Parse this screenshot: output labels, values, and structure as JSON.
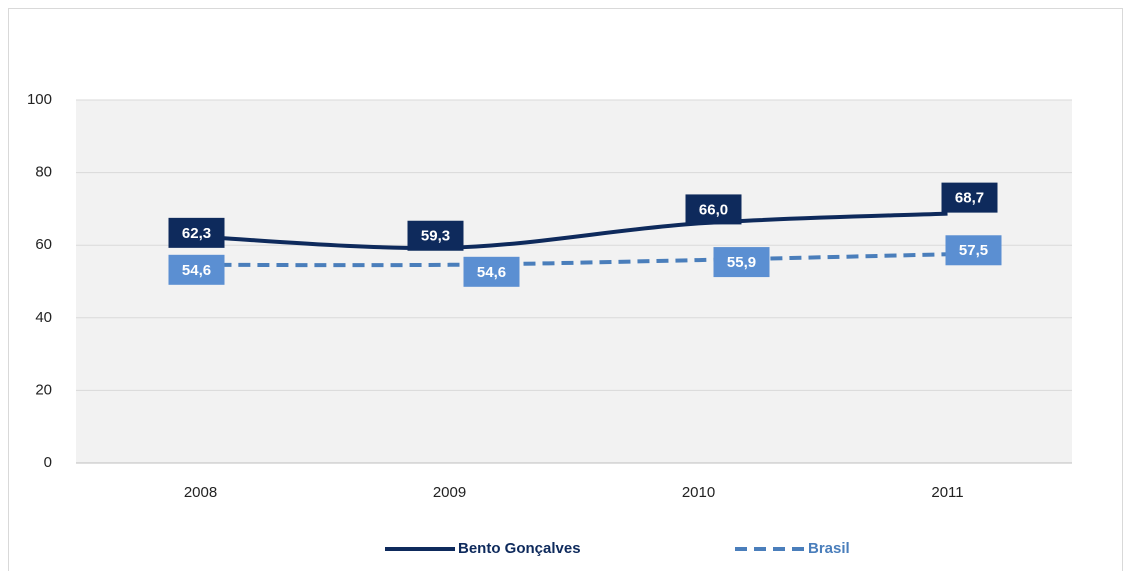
{
  "chart_data": {
    "type": "line",
    "categories": [
      "2008",
      "2009",
      "2010",
      "2011"
    ],
    "series": [
      {
        "name": "Bento Gonçalves",
        "color": "#0e2a5c",
        "dash": false,
        "label_color": "#0e2a5c",
        "values": [
          62.3,
          59.3,
          66.0,
          68.7
        ],
        "value_labels": [
          "62,3",
          "59,3",
          "66,0",
          "68,7"
        ]
      },
      {
        "name": "Brasil",
        "color": "#4a7ebb",
        "dash": true,
        "label_color": "#5b8fd2",
        "values": [
          54.6,
          54.6,
          55.9,
          57.5
        ],
        "value_labels": [
          "54,6",
          "54,6",
          "55,9",
          "57,5"
        ]
      }
    ],
    "ylim": [
      0,
      100
    ],
    "yticks": [
      0,
      20,
      40,
      60,
      80,
      100
    ],
    "grid": true,
    "legend": "bottom"
  }
}
